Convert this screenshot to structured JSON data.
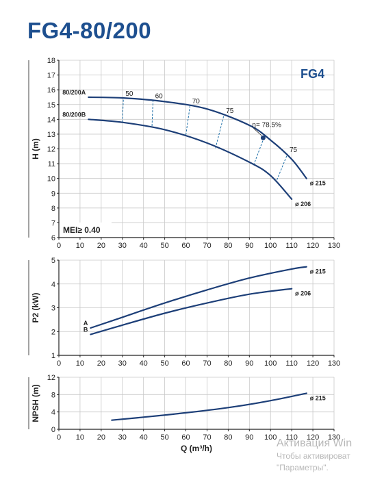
{
  "title": "FG4-80/200",
  "watermark": {
    "line1": "Активация Win",
    "line2": "Чтобы активироват",
    "line3": "\"Параметры\"."
  },
  "colors": {
    "title": "#1d4f8f",
    "curve": "#1d3f78",
    "grid": "#c8c8c8",
    "efficiency": "#1d6fa8"
  },
  "chart_data": [
    {
      "id": "head",
      "type": "line",
      "series_label": "FG4",
      "annotation": "MEI≥ 0.40",
      "xlabel": "",
      "ylabel": "H (m)",
      "xlim": [
        0,
        130
      ],
      "ylim": [
        6,
        18
      ],
      "xticks": [
        0,
        10,
        20,
        30,
        40,
        50,
        60,
        70,
        80,
        90,
        100,
        110,
        120,
        130
      ],
      "yticks": [
        6,
        7,
        8,
        9,
        10,
        11,
        12,
        13,
        14,
        15,
        16,
        17,
        18
      ],
      "grid": true,
      "series": [
        {
          "name": "80/200A",
          "end_label": "ø 215",
          "x": [
            14,
            30,
            50,
            70,
            90,
            100,
            110,
            117
          ],
          "y": [
            15.5,
            15.45,
            15.2,
            14.7,
            13.6,
            12.6,
            11.3,
            10.0
          ]
        },
        {
          "name": "80/200B",
          "end_label": "ø 206",
          "x": [
            14,
            30,
            50,
            70,
            90,
            100,
            110
          ],
          "y": [
            14.0,
            13.8,
            13.3,
            12.4,
            11.1,
            10.2,
            8.6
          ]
        }
      ],
      "efficiency_lines": [
        {
          "label": "50",
          "points": [
            [
              30,
              13.8
            ],
            [
              30.5,
              15.45
            ]
          ]
        },
        {
          "label": "60",
          "points": [
            [
              44,
              13.55
            ],
            [
              44.5,
              15.3
            ]
          ]
        },
        {
          "label": "70",
          "points": [
            [
              60,
              12.95
            ],
            [
              62,
              14.95
            ]
          ]
        },
        {
          "label": "75",
          "points": [
            [
              74,
              12.05
            ],
            [
              78,
              14.3
            ]
          ]
        },
        {
          "label": "75",
          "points": [
            [
              103,
              9.9
            ],
            [
              108,
              11.65
            ]
          ]
        }
      ],
      "eta_line": {
        "points": [
          [
            92,
            10.9
          ],
          [
            97,
            12.8
          ]
        ]
      },
      "best_point": {
        "label": "η= 78.5%",
        "x": 96.5,
        "y": 12.75
      }
    },
    {
      "id": "power",
      "type": "line",
      "xlabel": "",
      "ylabel": "P2 (kW)",
      "xlim": [
        0,
        130
      ],
      "ylim": [
        1,
        5
      ],
      "xticks": [
        0,
        10,
        20,
        30,
        40,
        50,
        60,
        70,
        80,
        90,
        100,
        110,
        120,
        130
      ],
      "yticks": [
        1,
        2,
        3,
        4,
        5
      ],
      "grid": true,
      "series": [
        {
          "name": "A",
          "end_label": "ø 215",
          "x": [
            15,
            30,
            50,
            70,
            90,
            110,
            117
          ],
          "y": [
            2.15,
            2.6,
            3.2,
            3.75,
            4.25,
            4.63,
            4.72
          ]
        },
        {
          "name": "B",
          "end_label": "ø 206",
          "x": [
            15,
            30,
            50,
            70,
            90,
            110
          ],
          "y": [
            1.88,
            2.27,
            2.77,
            3.2,
            3.57,
            3.8
          ]
        }
      ]
    },
    {
      "id": "npsh",
      "type": "line",
      "xlabel": "Q (m³/h)",
      "ylabel": "NPSH (m)",
      "xlim": [
        0,
        130
      ],
      "ylim": [
        0,
        12
      ],
      "xticks": [
        0,
        10,
        20,
        30,
        40,
        50,
        60,
        70,
        80,
        90,
        100,
        110,
        120,
        130
      ],
      "yticks": [
        0,
        4,
        8,
        12
      ],
      "grid": true,
      "series": [
        {
          "name": "",
          "end_label": "ø 215",
          "x": [
            25,
            40,
            60,
            80,
            100,
            117
          ],
          "y": [
            2.1,
            2.8,
            3.8,
            5.0,
            6.6,
            8.3
          ]
        }
      ]
    }
  ]
}
